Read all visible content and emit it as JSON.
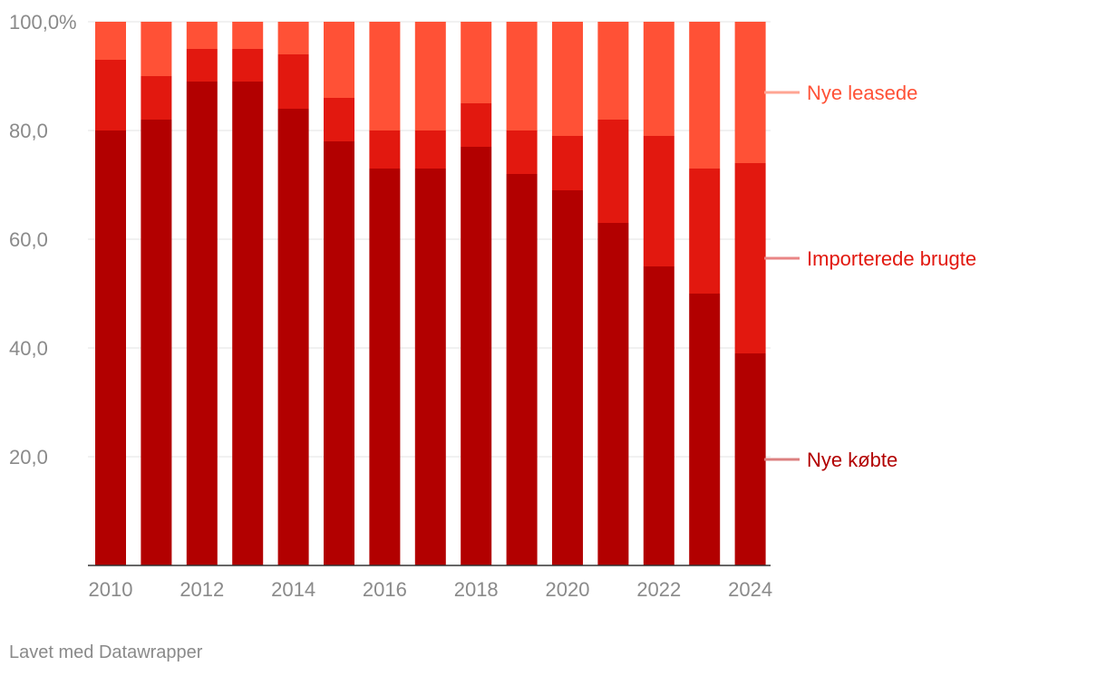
{
  "chart_data": {
    "type": "bar",
    "stacked": true,
    "categories": [
      "2010",
      "2011",
      "2012",
      "2013",
      "2014",
      "2015",
      "2016",
      "2017",
      "2018",
      "2019",
      "2020",
      "2021",
      "2022",
      "2023",
      "2024"
    ],
    "series": [
      {
        "name": "Nye købte",
        "color": "#b20000",
        "values": [
          80,
          82,
          89,
          89,
          84,
          78,
          73,
          73,
          77,
          72,
          69,
          63,
          55,
          50,
          39
        ]
      },
      {
        "name": "Importerede brugte",
        "color": "#e2180f",
        "values": [
          13,
          8,
          6,
          6,
          10,
          8,
          7,
          7,
          8,
          8,
          10,
          19,
          24,
          23,
          35
        ]
      },
      {
        "name": "Nye leasede",
        "color": "#ff5136",
        "values": [
          7,
          10,
          5,
          5,
          6,
          14,
          20,
          20,
          15,
          20,
          21,
          18,
          21,
          27,
          26
        ]
      }
    ],
    "x_tick_labels": [
      "2010",
      "2012",
      "2014",
      "2016",
      "2018",
      "2020",
      "2022",
      "2024"
    ],
    "y_tick_labels": [
      "20,0",
      "40,0",
      "60,0",
      "80,0",
      "100,0%"
    ],
    "y_ticks": [
      20,
      40,
      60,
      80,
      100
    ],
    "ylim": [
      0,
      100
    ],
    "grid": true,
    "legend": [
      {
        "label": "Nye leasede",
        "text_color": "#ff5136",
        "line_color": "#ffa593",
        "y_value": 87
      },
      {
        "label": "Importerede brugte",
        "text_color": "#e2180f",
        "line_color": "#e98585",
        "y_value": 56.5
      },
      {
        "label": "Nye købte",
        "text_color": "#b20000",
        "line_color": "#dc8080",
        "y_value": 19.5
      }
    ],
    "legend_placement": "right"
  },
  "footer": {
    "credit": "Lavet med Datawrapper"
  }
}
